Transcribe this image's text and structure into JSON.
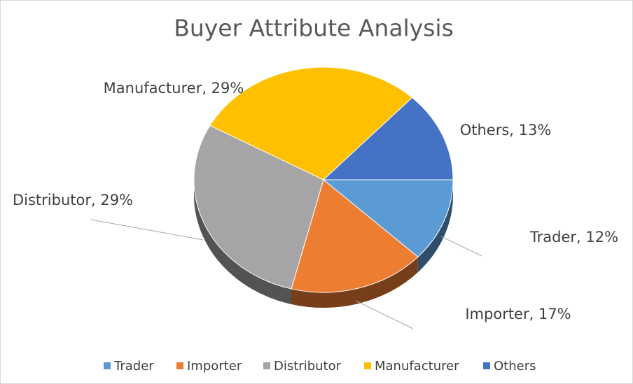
{
  "chart_data": {
    "type": "pie",
    "title": "Buyer Attribute Analysis",
    "categories": [
      "Trader",
      "Importer",
      "Distributor",
      "Manufacturer",
      "Others"
    ],
    "values": [
      12,
      17,
      29,
      29,
      13
    ],
    "value_labels": [
      "Trader, 12%",
      "Importer, 17%",
      "Distributor, 29%",
      "Manufacturer, 29%",
      "Others, 13%"
    ],
    "colors": [
      "#5b9bd5",
      "#ed7d31",
      "#a5a5a5",
      "#ffc000",
      "#4472c4"
    ],
    "legend": "bottom"
  }
}
